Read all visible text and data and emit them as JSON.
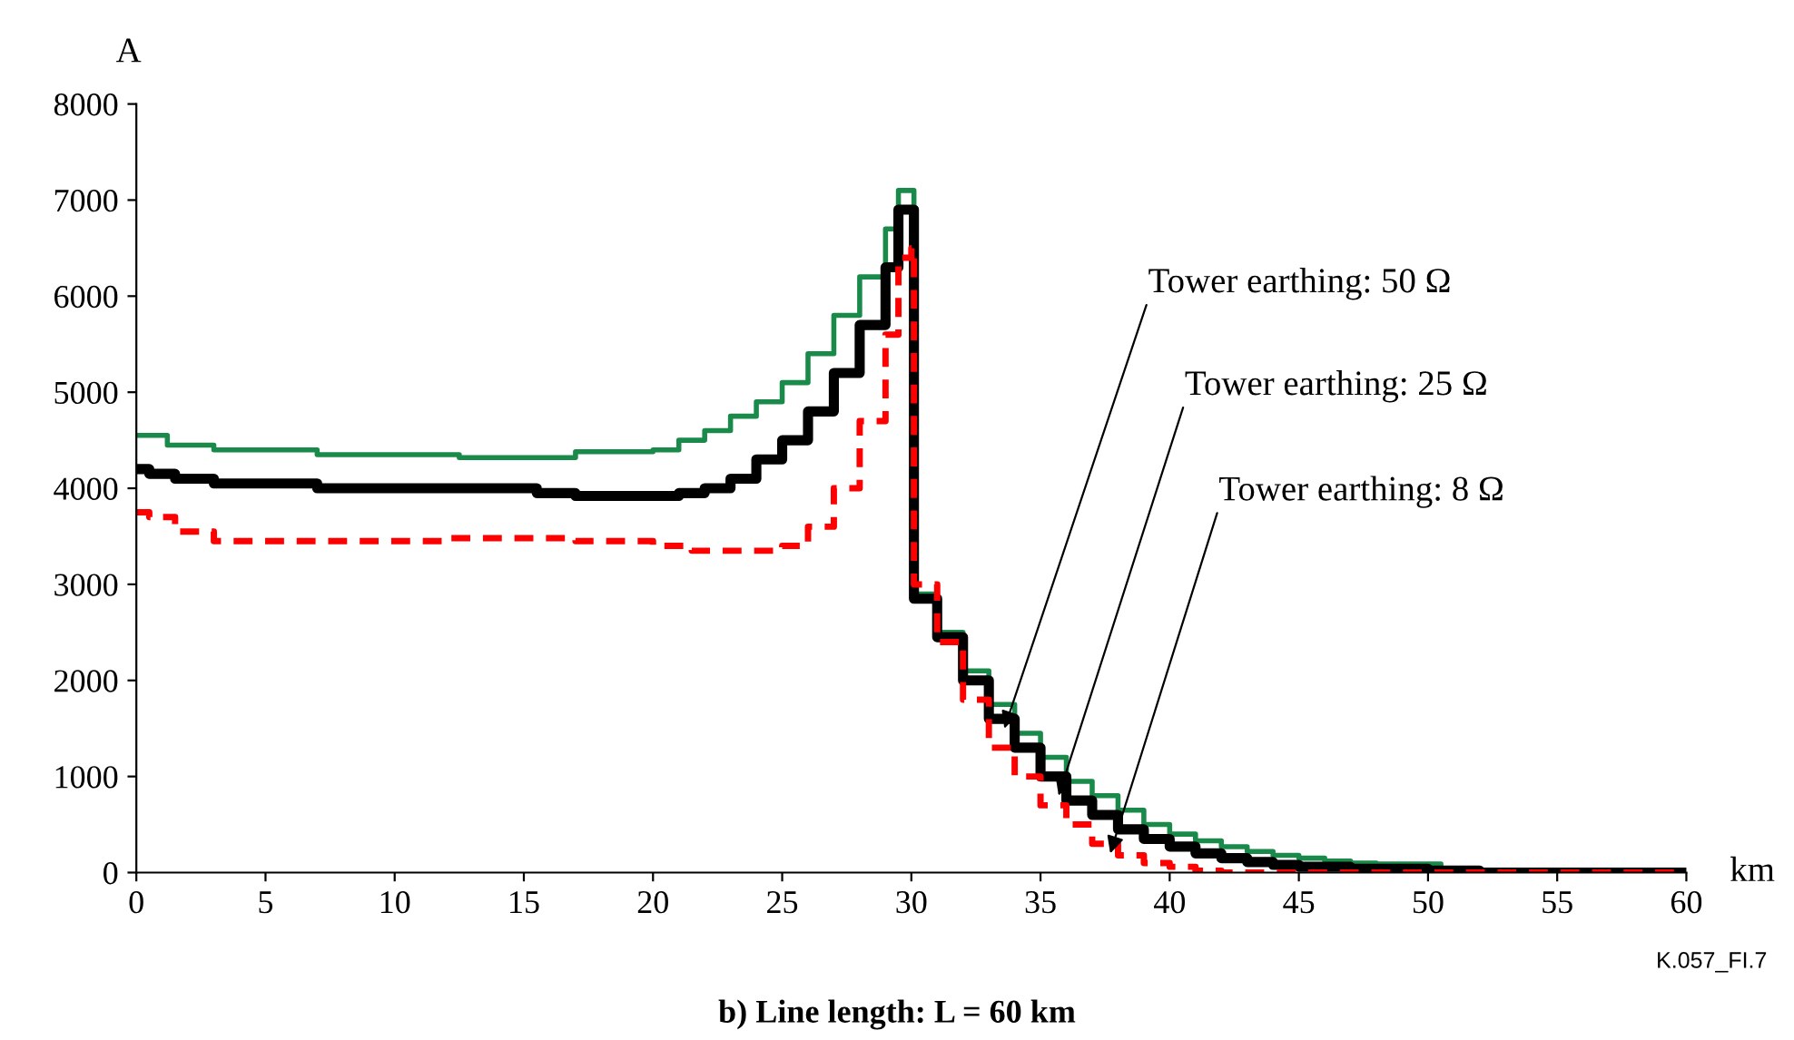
{
  "chart_data": {
    "type": "step",
    "title": "b) Line length: L = 60 km",
    "xlabel": "km",
    "ylabel": "A",
    "annotations": [
      {
        "text": "Tower earthing: 50 Ω",
        "x": 33.6,
        "y": 1500
      },
      {
        "text": "Tower earthing: 25 Ω",
        "x": 35.7,
        "y": 800
      },
      {
        "text": "Tower earthing: 8 Ω",
        "x": 37.7,
        "y": 200
      },
      "K.057_FI.7"
    ],
    "xlim": [
      0,
      60
    ],
    "xticks": [
      0,
      5,
      10,
      15,
      20,
      25,
      30,
      35,
      40,
      45,
      50,
      55,
      60
    ],
    "ylim": [
      0,
      8000
    ],
    "yticks": [
      0,
      1000,
      2000,
      3000,
      4000,
      5000,
      6000,
      7000,
      8000
    ],
    "grid": false,
    "legend": false,
    "marker": "none",
    "series": [
      {
        "color": "#1a8a4a",
        "line_style": "solid",
        "x": [
          0,
          1.2,
          3,
          7,
          12.5,
          17,
          20,
          21,
          22,
          23,
          24,
          25,
          26,
          27,
          28,
          29,
          29.5,
          30,
          30.1,
          31,
          32,
          33,
          34,
          35,
          36,
          37,
          38,
          39,
          40,
          41,
          42,
          43,
          44,
          45,
          46,
          47,
          48,
          50.5
        ],
        "values": [
          4550,
          4450,
          4400,
          4350,
          4320,
          4380,
          4400,
          4500,
          4600,
          4750,
          4900,
          5100,
          5400,
          5800,
          6200,
          6700,
          7100,
          7100,
          2900,
          2500,
          2100,
          1750,
          1450,
          1200,
          950,
          800,
          650,
          500,
          400,
          330,
          270,
          220,
          180,
          150,
          120,
          100,
          90,
          80
        ]
      },
      {
        "color": "#000000",
        "line_style": "solid",
        "x": [
          0,
          0.5,
          1.5,
          3,
          7,
          15.5,
          17,
          21,
          22,
          23,
          24,
          25,
          26,
          27,
          28,
          29,
          29.5,
          30,
          30.1,
          31,
          32,
          33,
          34,
          35,
          36,
          37,
          38,
          39,
          40,
          41,
          42,
          43,
          44,
          45,
          47,
          50,
          52,
          60
        ],
        "values": [
          4200,
          4150,
          4100,
          4050,
          4000,
          3950,
          3920,
          3950,
          4000,
          4100,
          4300,
          4500,
          4800,
          5200,
          5700,
          6300,
          6900,
          6900,
          2850,
          2450,
          2000,
          1600,
          1300,
          1000,
          750,
          600,
          450,
          350,
          270,
          200,
          150,
          110,
          80,
          60,
          40,
          20,
          0,
          0
        ]
      },
      {
        "color": "#ff0000",
        "line_style": "dashed",
        "x": [
          0,
          0.5,
          1.5,
          3,
          12,
          17,
          20,
          21.5,
          24.5,
          25,
          26,
          27,
          28,
          29,
          29.5,
          30,
          30.1,
          31,
          32,
          33,
          34,
          35,
          36,
          37,
          38,
          39,
          40,
          41,
          42,
          60
        ],
        "values": [
          3750,
          3700,
          3550,
          3450,
          3480,
          3450,
          3400,
          3350,
          3350,
          3400,
          3600,
          4000,
          4700,
          5600,
          6400,
          6500,
          3000,
          2400,
          1800,
          1300,
          1000,
          700,
          500,
          300,
          180,
          100,
          60,
          20,
          0,
          0
        ]
      }
    ]
  }
}
